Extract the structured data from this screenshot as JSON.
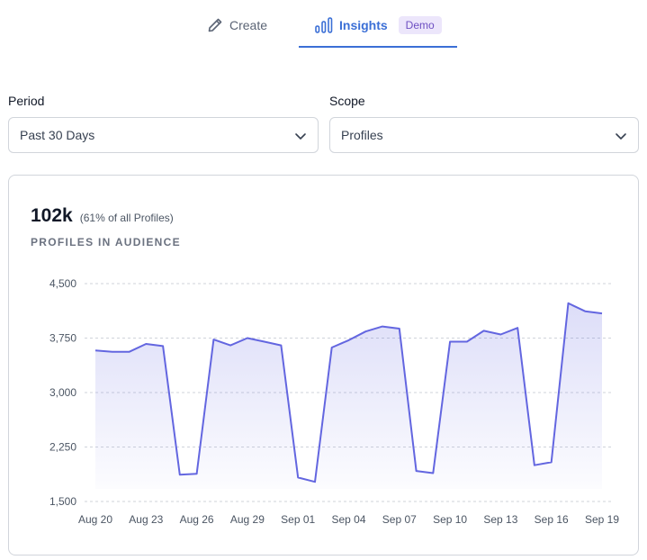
{
  "tabs": {
    "create_label": "Create",
    "insights_label": "Insights",
    "insights_badge": "Demo",
    "active": "insights"
  },
  "filters": {
    "period_label": "Period",
    "period_value": "Past 30 Days",
    "scope_label": "Scope",
    "scope_value": "Profiles"
  },
  "metric": {
    "value": "102k",
    "subtitle": "(61% of all Profiles)",
    "label": "PROFILES IN AUDIENCE"
  },
  "colors": {
    "accent": "#3b6fd6",
    "line": "#6366e0",
    "badge_bg": "#ece6fb"
  },
  "chart_data": {
    "type": "area",
    "title": "",
    "xlabel": "",
    "ylabel": "",
    "ylim": [
      1500,
      4500
    ],
    "y_ticks": [
      "1,500",
      "2,250",
      "3,000",
      "3,750",
      "4,500"
    ],
    "y_tick_values": [
      1500,
      2250,
      3000,
      3750,
      4500
    ],
    "x_tick_labels": [
      "Aug 20",
      "Aug 23",
      "Aug 26",
      "Aug 29",
      "Sep 01",
      "Sep 04",
      "Sep 07",
      "Sep 10",
      "Sep 13",
      "Sep 16",
      "Sep 19"
    ],
    "x_tick_indices": [
      0,
      3,
      6,
      9,
      12,
      15,
      18,
      21,
      24,
      27,
      30
    ],
    "grid": true,
    "series": [
      {
        "name": "Profiles in audience",
        "values": [
          3580,
          3560,
          3560,
          3670,
          3640,
          1870,
          1880,
          3730,
          3650,
          3750,
          3700,
          3650,
          1830,
          1770,
          3620,
          3720,
          3840,
          3910,
          3880,
          1920,
          1890,
          3700,
          3700,
          3850,
          3800,
          3890,
          2000,
          2040,
          4230,
          4120,
          4090
        ]
      }
    ]
  }
}
